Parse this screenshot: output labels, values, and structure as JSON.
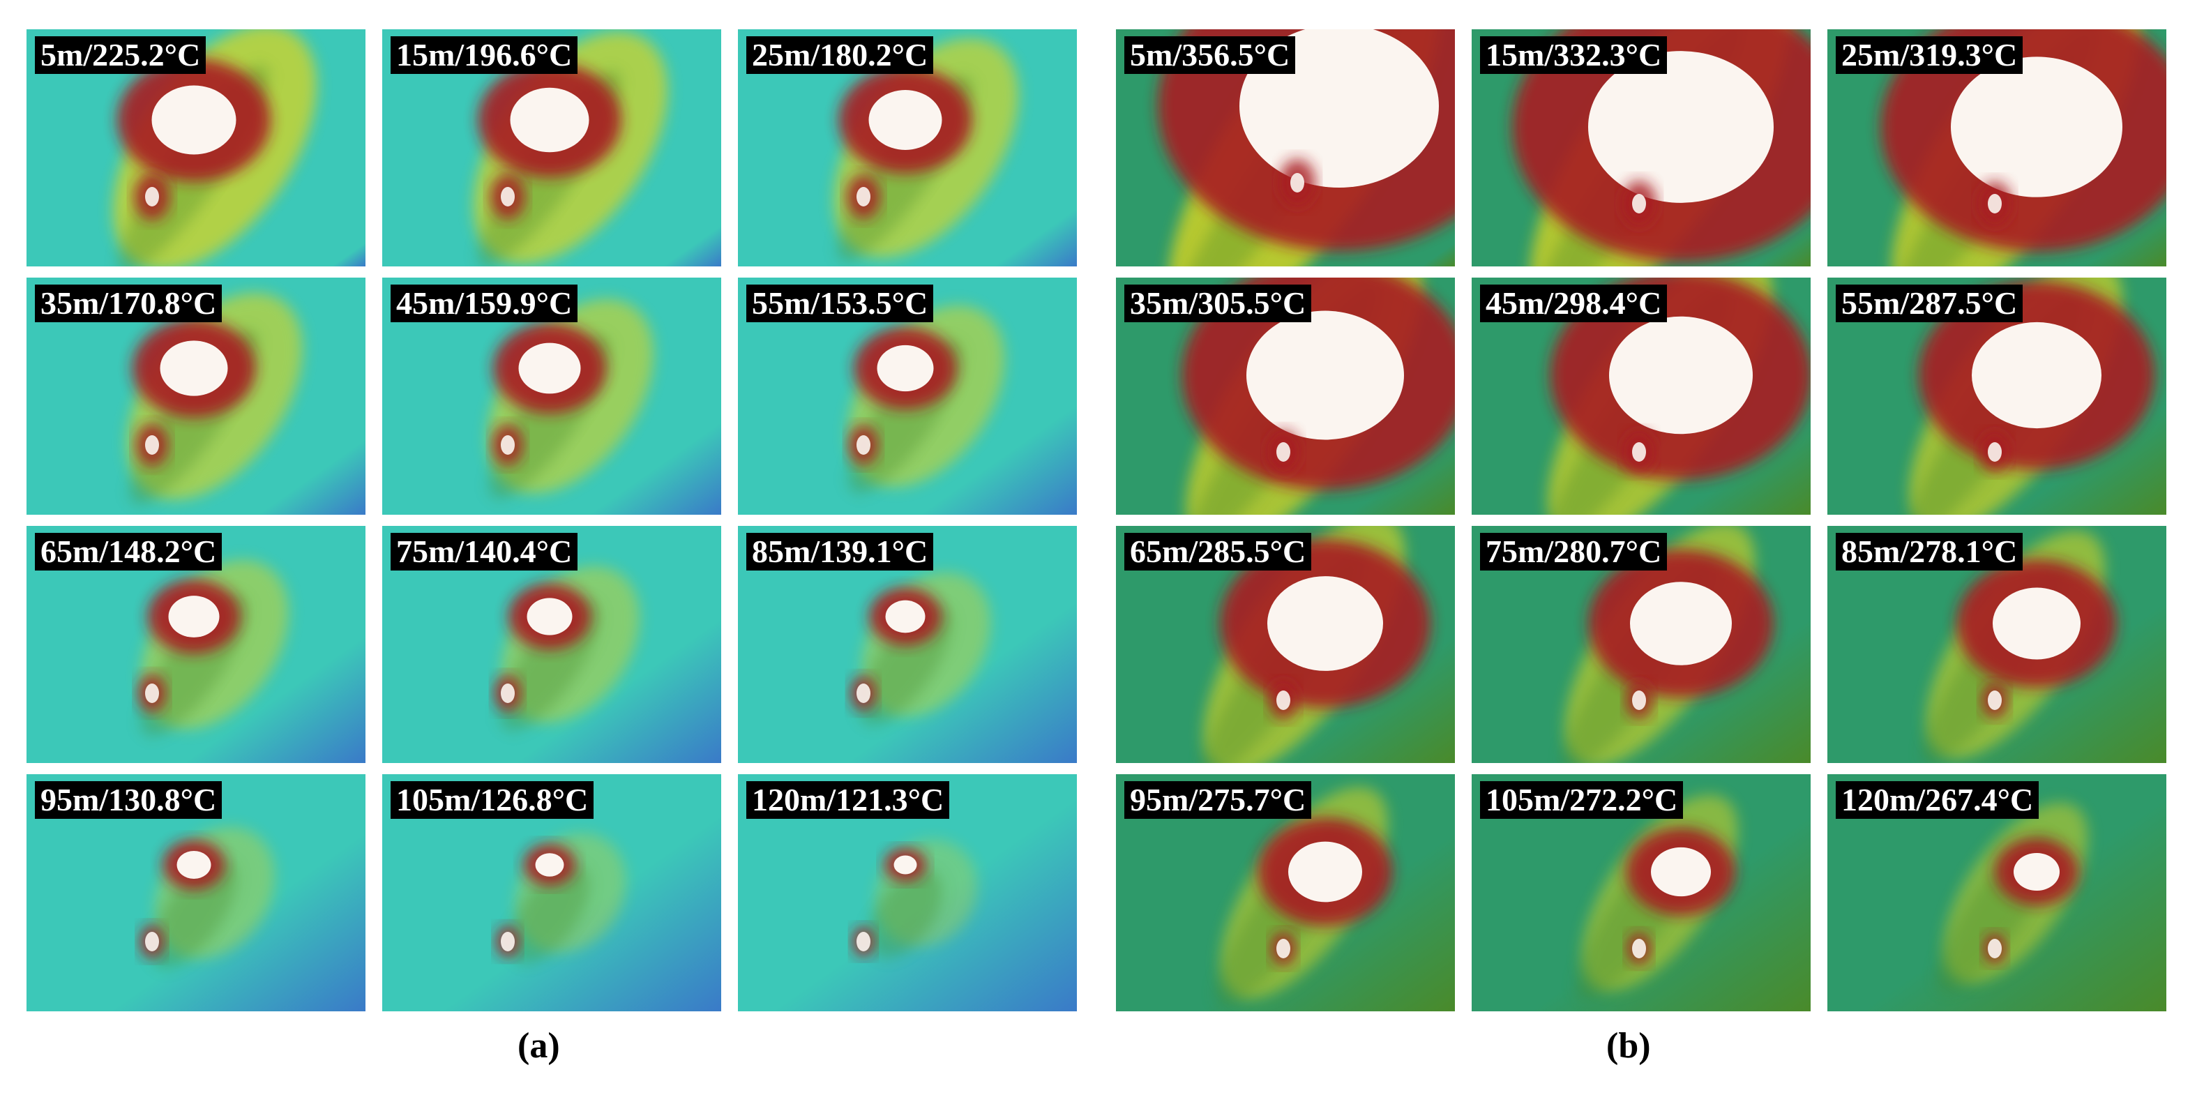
{
  "panels": [
    {
      "caption": "(a)",
      "tiles": [
        "5m/225.2°C",
        "15m/196.6°C",
        "25m/180.2°C",
        "35m/170.8°C",
        "45m/159.9°C",
        "55m/153.5°C",
        "65m/148.2°C",
        "75m/140.4°C",
        "85m/139.1°C",
        "95m/130.8°C",
        "105m/126.8°C",
        "120m/121.3°C"
      ]
    },
    {
      "caption": "(b)",
      "tiles": [
        "5m/356.5°C",
        "15m/332.3°C",
        "25m/319.3°C",
        "35m/305.5°C",
        "45m/298.4°C",
        "55m/287.5°C",
        "65m/285.5°C",
        "75m/280.7°C",
        "85m/278.1°C",
        "95m/275.7°C",
        "105m/272.2°C",
        "120m/267.4°C"
      ]
    }
  ],
  "colors": {
    "cool_a": "#3cc8b8",
    "cool_deep": "#3a7ac8",
    "cool_b": "#2e9a6a",
    "mid_green": "#4a8a2a",
    "yellow": "#d8d420",
    "hot_red": "#a81c24",
    "hot_white": "#fbf5f0"
  }
}
